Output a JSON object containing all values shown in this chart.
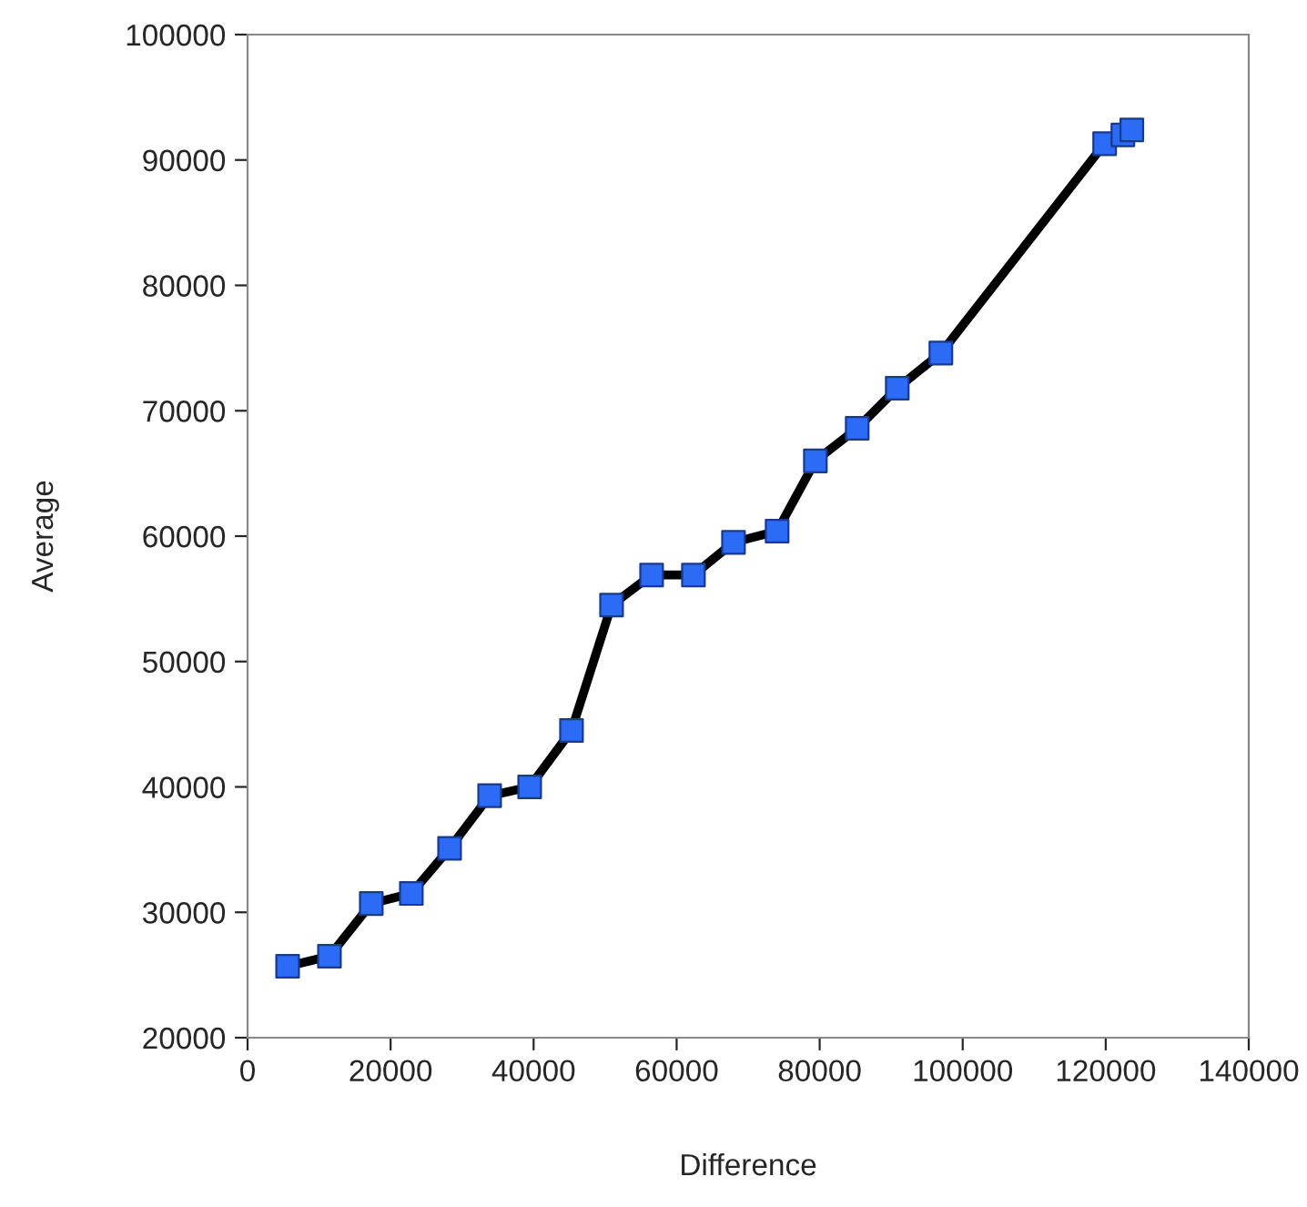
{
  "chart_data": {
    "type": "line",
    "xlabel": "Difference",
    "ylabel": "Average",
    "xlim": [
      0,
      140000
    ],
    "xticks": [
      0,
      20000,
      40000,
      60000,
      80000,
      100000,
      120000,
      140000
    ],
    "ylim": [
      20000,
      100000
    ],
    "yticks": [
      20000,
      30000,
      40000,
      50000,
      60000,
      70000,
      80000,
      90000,
      100000
    ],
    "grid": false,
    "marker": "square",
    "line_style": "solid",
    "series": [
      {
        "color": "#2b6bf5",
        "x": [
          5600,
          11450,
          17300,
          22900,
          28250,
          33850,
          39450,
          45300,
          50900,
          56500,
          62350,
          67950,
          74050,
          79400,
          85250,
          90850,
          96950,
          119850,
          122400,
          123650
        ],
        "values": [
          25700,
          26500,
          30700,
          31500,
          35100,
          39300,
          40000,
          44500,
          54500,
          56900,
          56900,
          59500,
          60400,
          66000,
          68600,
          71800,
          74600,
          91300,
          92000,
          92400
        ]
      }
    ]
  }
}
